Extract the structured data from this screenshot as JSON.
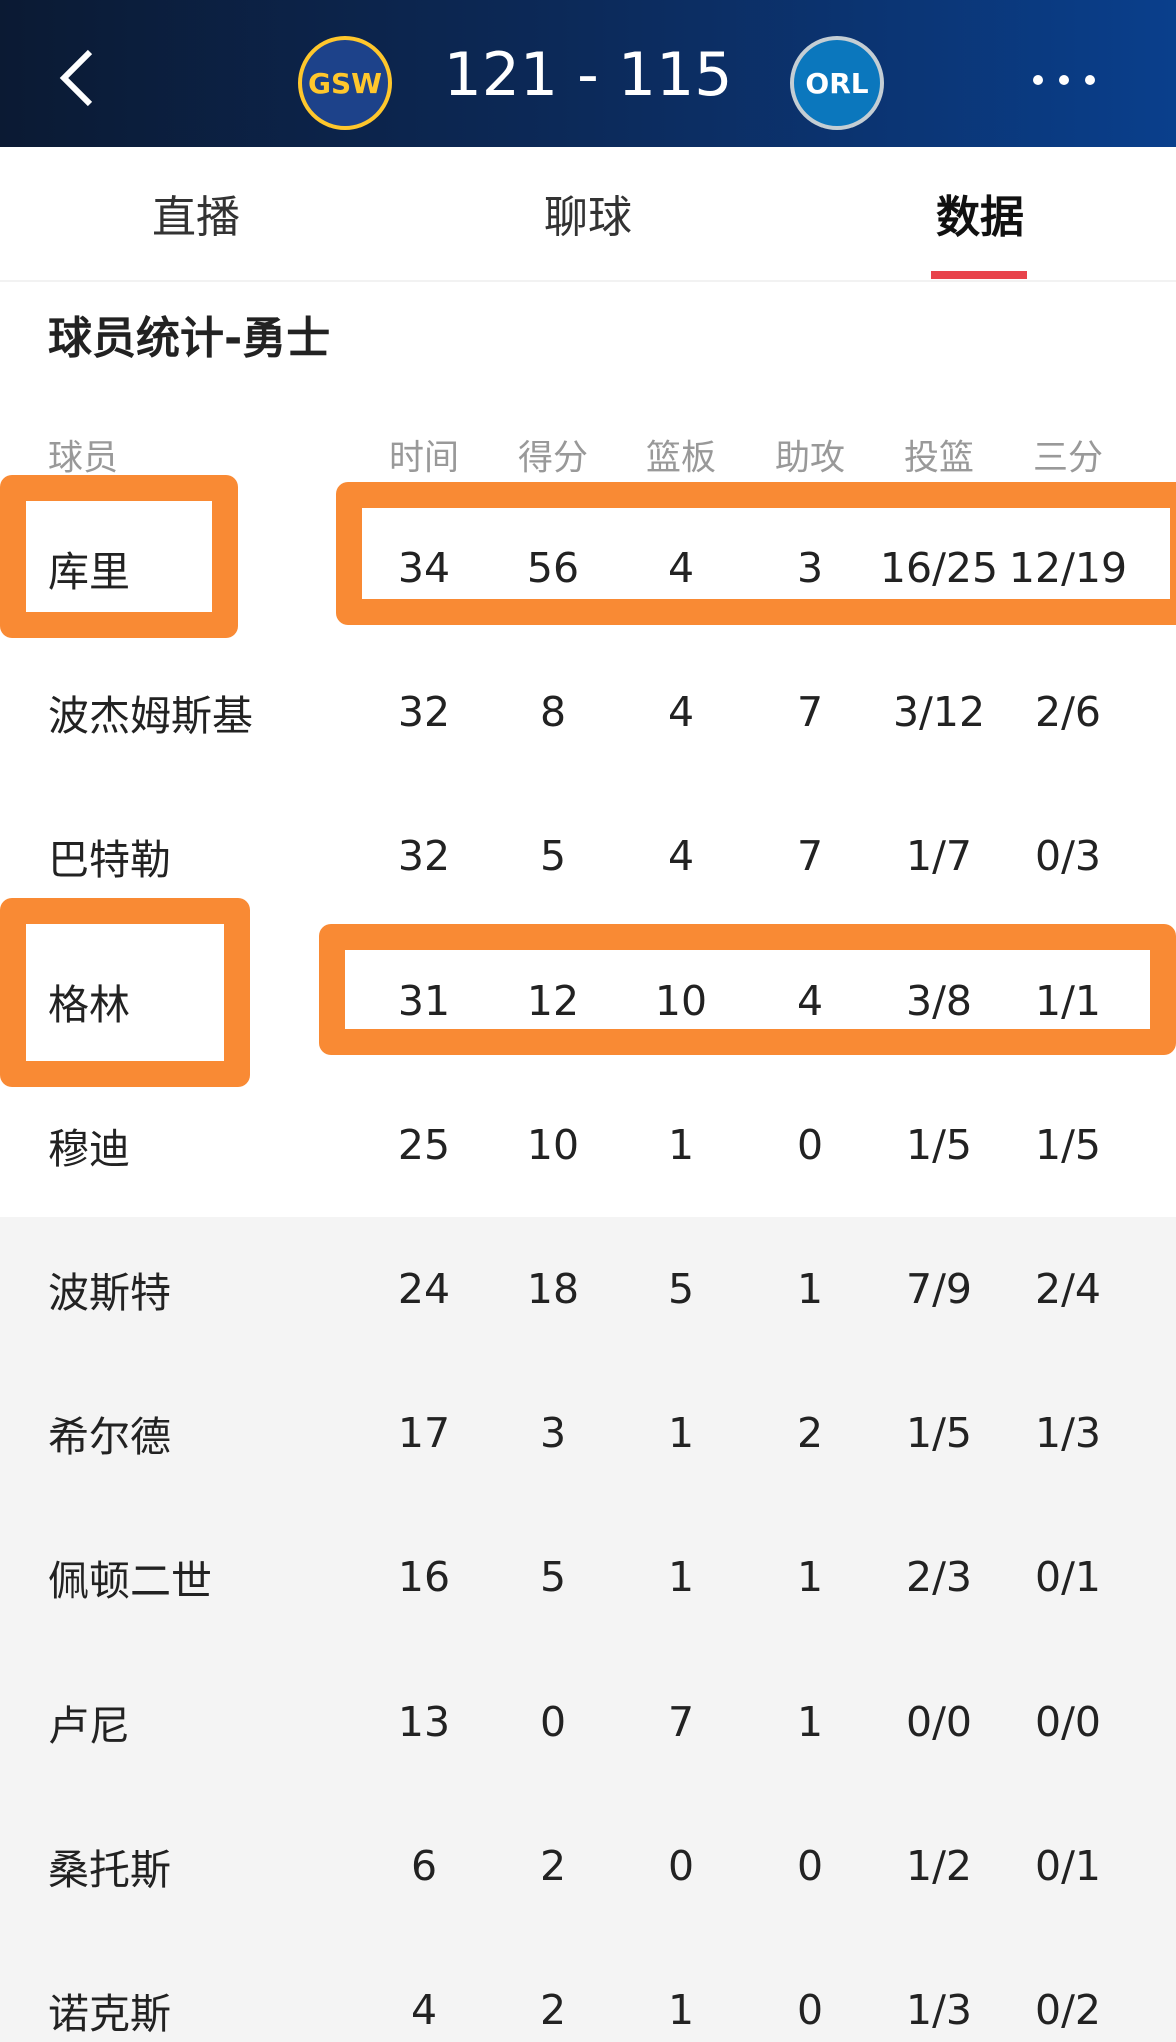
{
  "header": {
    "home_logo": "GSW",
    "score": "121 - 115",
    "away_logo": "ORL"
  },
  "tabs": [
    "直播",
    "聊球",
    "数据"
  ],
  "section_title": "球员统计-勇士",
  "table": {
    "columns": [
      "球员",
      "时间",
      "得分",
      "篮板",
      "助攻",
      "投篮",
      "三分"
    ],
    "rows": [
      [
        "库里",
        "34",
        "56",
        "4",
        "3",
        "16/25",
        "12/19"
      ],
      [
        "波杰姆斯基",
        "32",
        "8",
        "4",
        "7",
        "3/12",
        "2/6"
      ],
      [
        "巴特勒",
        "32",
        "5",
        "4",
        "7",
        "1/7",
        "0/3"
      ],
      [
        "格林",
        "31",
        "12",
        "10",
        "4",
        "3/8",
        "1/1"
      ],
      [
        "穆迪",
        "25",
        "10",
        "1",
        "0",
        "1/5",
        "1/5"
      ],
      [
        "波斯特",
        "24",
        "18",
        "5",
        "1",
        "7/9",
        "2/4"
      ],
      [
        "希尔德",
        "17",
        "3",
        "1",
        "2",
        "1/5",
        "1/3"
      ],
      [
        "佩顿二世",
        "16",
        "5",
        "1",
        "1",
        "2/3",
        "0/1"
      ],
      [
        "卢尼",
        "13",
        "0",
        "7",
        "1",
        "0/0",
        "0/0"
      ],
      [
        "桑托斯",
        "6",
        "2",
        "0",
        "0",
        "1/2",
        "0/1"
      ],
      [
        "诺克斯",
        "4",
        "2",
        "1",
        "0",
        "1/3",
        "0/2"
      ]
    ]
  }
}
